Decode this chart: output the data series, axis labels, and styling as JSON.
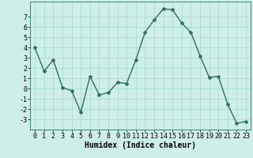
{
  "x": [
    0,
    1,
    2,
    3,
    4,
    5,
    6,
    7,
    8,
    9,
    10,
    11,
    12,
    13,
    14,
    15,
    16,
    17,
    18,
    19,
    20,
    21,
    22,
    23
  ],
  "y": [
    4.0,
    1.7,
    2.8,
    0.1,
    -0.2,
    -2.3,
    1.2,
    -0.6,
    -0.4,
    0.6,
    0.5,
    2.8,
    5.5,
    6.7,
    7.8,
    7.7,
    6.4,
    5.5,
    3.2,
    1.1,
    1.2,
    -1.5,
    -3.4,
    -3.2
  ],
  "bg_color": "#ceeee8",
  "line_color": "#2d6e65",
  "marker": "*",
  "marker_size": 3,
  "xlabel": "Humidex (Indice chaleur)",
  "ylim": [
    -4,
    8.5
  ],
  "yticks": [
    -3,
    -2,
    -1,
    0,
    1,
    2,
    3,
    4,
    5,
    6,
    7
  ],
  "xticks": [
    0,
    1,
    2,
    3,
    4,
    5,
    6,
    7,
    8,
    9,
    10,
    11,
    12,
    13,
    14,
    15,
    16,
    17,
    18,
    19,
    20,
    21,
    22,
    23
  ],
  "grid_color": "#9fd8d0",
  "xlabel_fontsize": 7,
  "tick_fontsize": 6
}
